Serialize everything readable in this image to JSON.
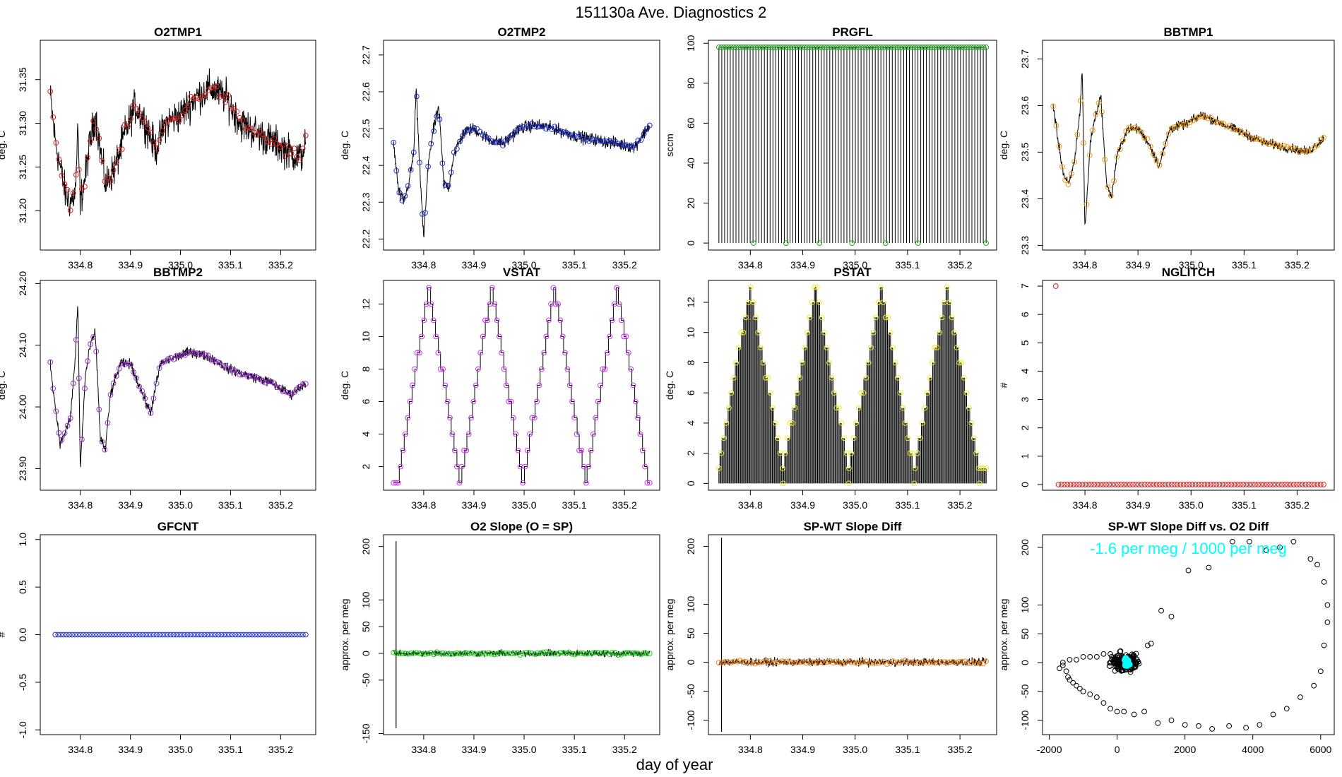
{
  "figure": {
    "title": "151130a   Ave. Diagnostics 2",
    "xlabel": "day of year"
  },
  "colors": {
    "axis": "#000000",
    "line": "#000000",
    "annotation": "#00ffff"
  },
  "chart_data": [
    {
      "name": "O2TMP1",
      "type": "line",
      "title": "O2TMP1",
      "ylabel": "deg. C",
      "x_range": [
        334.74,
        335.25
      ],
      "xlim": [
        334.72,
        335.27
      ],
      "ylim": [
        31.155,
        31.395
      ],
      "yticks": [
        31.2,
        31.25,
        31.3,
        31.35
      ],
      "ytick_labels": [
        "31.20",
        "31.25",
        "31.30",
        "31.35"
      ],
      "xticks": [
        334.8,
        334.9,
        335.0,
        335.1,
        335.2
      ],
      "xtick_labels": [
        "334.8",
        "334.9",
        "335.0",
        "335.1",
        "335.2"
      ],
      "marker_color": "#dd2222",
      "marker_count": 90,
      "noise": 0.03,
      "profile": [
        [
          334.74,
          31.33
        ],
        [
          334.75,
          31.28
        ],
        [
          334.76,
          31.25
        ],
        [
          334.77,
          31.22
        ],
        [
          334.78,
          31.21
        ],
        [
          334.79,
          31.22
        ],
        [
          334.795,
          31.29
        ],
        [
          334.8,
          31.21
        ],
        [
          334.81,
          31.24
        ],
        [
          334.82,
          31.28
        ],
        [
          334.83,
          31.31
        ],
        [
          334.84,
          31.27
        ],
        [
          334.85,
          31.23
        ],
        [
          334.87,
          31.25
        ],
        [
          334.89,
          31.29
        ],
        [
          334.91,
          31.32
        ],
        [
          334.93,
          31.3
        ],
        [
          334.95,
          31.27
        ],
        [
          334.97,
          31.3
        ],
        [
          335.0,
          31.31
        ],
        [
          335.03,
          31.33
        ],
        [
          335.06,
          31.34
        ],
        [
          335.09,
          31.33
        ],
        [
          335.12,
          31.3
        ],
        [
          335.15,
          31.29
        ],
        [
          335.18,
          31.28
        ],
        [
          335.21,
          31.27
        ],
        [
          335.24,
          31.26
        ],
        [
          335.25,
          31.28
        ]
      ]
    },
    {
      "name": "O2TMP2",
      "type": "line",
      "title": "O2TMP2",
      "ylabel": "deg. C",
      "x_range": [
        334.74,
        335.25
      ],
      "xlim": [
        334.72,
        335.27
      ],
      "ylim": [
        22.17,
        22.74
      ],
      "yticks": [
        22.2,
        22.3,
        22.4,
        22.5,
        22.6,
        22.7
      ],
      "ytick_labels": [
        "22.2",
        "22.3",
        "22.4",
        "22.5",
        "22.6",
        "22.7"
      ],
      "xticks": [
        334.8,
        334.9,
        335.0,
        335.1,
        335.2
      ],
      "xtick_labels": [
        "334.8",
        "334.9",
        "335.0",
        "335.1",
        "335.2"
      ],
      "marker_color": "#2233cc",
      "marker_count": 90,
      "noise": 0.025,
      "profile": [
        [
          334.74,
          22.46
        ],
        [
          334.75,
          22.33
        ],
        [
          334.76,
          22.3
        ],
        [
          334.77,
          22.35
        ],
        [
          334.78,
          22.43
        ],
        [
          334.785,
          22.61
        ],
        [
          334.79,
          22.45
        ],
        [
          334.8,
          22.2
        ],
        [
          334.81,
          22.42
        ],
        [
          334.82,
          22.5
        ],
        [
          334.83,
          22.56
        ],
        [
          334.84,
          22.35
        ],
        [
          334.85,
          22.34
        ],
        [
          334.86,
          22.43
        ],
        [
          334.88,
          22.49
        ],
        [
          334.9,
          22.5
        ],
        [
          334.93,
          22.47
        ],
        [
          334.96,
          22.46
        ],
        [
          334.99,
          22.5
        ],
        [
          335.02,
          22.51
        ],
        [
          335.06,
          22.5
        ],
        [
          335.1,
          22.48
        ],
        [
          335.14,
          22.47
        ],
        [
          335.18,
          22.46
        ],
        [
          335.22,
          22.45
        ],
        [
          335.25,
          22.51
        ]
      ]
    },
    {
      "name": "PRGFL",
      "type": "spike",
      "title": "PRGFL",
      "ylabel": "sccm",
      "x_range": [
        334.74,
        335.25
      ],
      "xlim": [
        334.72,
        335.27
      ],
      "ylim": [
        -3.5,
        101.5
      ],
      "yticks": [
        0,
        20,
        40,
        60,
        80,
        100
      ],
      "ytick_labels": [
        "0",
        "20",
        "40",
        "60",
        "80",
        "100"
      ],
      "xticks": [
        334.8,
        334.9,
        335.0,
        335.1,
        335.2
      ],
      "xtick_labels": [
        "334.8",
        "334.9",
        "335.0",
        "335.1",
        "335.2"
      ],
      "marker_color": "#22aa22",
      "level": 98,
      "spike_count": 95,
      "zero_marker_days": [
        334.806,
        334.868,
        334.932,
        334.994,
        335.058,
        335.12,
        335.25
      ]
    },
    {
      "name": "BBTMP1",
      "type": "line",
      "title": "BBTMP1",
      "ylabel": "deg. C",
      "x_range": [
        334.74,
        335.25
      ],
      "xlim": [
        334.72,
        335.27
      ],
      "ylim": [
        23.29,
        23.74
      ],
      "yticks": [
        23.3,
        23.4,
        23.5,
        23.6,
        23.7
      ],
      "ytick_labels": [
        "23.3",
        "23.4",
        "23.5",
        "23.6",
        "23.7"
      ],
      "xticks": [
        334.8,
        334.9,
        335.0,
        335.1,
        335.2
      ],
      "xtick_labels": [
        "334.8",
        "334.9",
        "335.0",
        "335.1",
        "335.2"
      ],
      "marker_color": "#ee9911",
      "marker_count": 90,
      "noise": 0.015,
      "profile": [
        [
          334.74,
          23.6
        ],
        [
          334.75,
          23.52
        ],
        [
          334.76,
          23.45
        ],
        [
          334.77,
          23.43
        ],
        [
          334.78,
          23.48
        ],
        [
          334.79,
          23.58
        ],
        [
          334.795,
          23.68
        ],
        [
          334.8,
          23.33
        ],
        [
          334.81,
          23.52
        ],
        [
          334.82,
          23.58
        ],
        [
          334.83,
          23.62
        ],
        [
          334.84,
          23.44
        ],
        [
          334.85,
          23.4
        ],
        [
          334.86,
          23.49
        ],
        [
          334.88,
          23.55
        ],
        [
          334.9,
          23.55
        ],
        [
          334.92,
          23.52
        ],
        [
          334.94,
          23.47
        ],
        [
          334.96,
          23.55
        ],
        [
          334.99,
          23.56
        ],
        [
          335.02,
          23.58
        ],
        [
          335.06,
          23.56
        ],
        [
          335.1,
          23.54
        ],
        [
          335.14,
          23.52
        ],
        [
          335.18,
          23.51
        ],
        [
          335.22,
          23.5
        ],
        [
          335.25,
          23.53
        ]
      ]
    },
    {
      "name": "BBTMP2",
      "type": "line",
      "title": "BBTMP2",
      "ylabel": "deg. C",
      "x_range": [
        334.74,
        335.25
      ],
      "xlim": [
        334.72,
        335.27
      ],
      "ylim": [
        23.865,
        24.205
      ],
      "yticks": [
        23.9,
        24.0,
        24.1,
        24.2
      ],
      "ytick_labels": [
        "23.90",
        "24.00",
        "24.10",
        "24.20"
      ],
      "xticks": [
        334.8,
        334.9,
        335.0,
        335.1,
        335.2
      ],
      "xtick_labels": [
        "334.8",
        "334.9",
        "335.0",
        "335.1",
        "335.2"
      ],
      "marker_color": "#9933cc",
      "marker_count": 90,
      "noise": 0.012,
      "profile": [
        [
          334.74,
          24.07
        ],
        [
          334.75,
          24.0
        ],
        [
          334.76,
          23.94
        ],
        [
          334.77,
          23.96
        ],
        [
          334.78,
          23.98
        ],
        [
          334.79,
          24.08
        ],
        [
          334.795,
          24.17
        ],
        [
          334.8,
          23.9
        ],
        [
          334.81,
          24.05
        ],
        [
          334.82,
          24.1
        ],
        [
          334.83,
          24.12
        ],
        [
          334.84,
          23.95
        ],
        [
          334.85,
          23.93
        ],
        [
          334.86,
          24.02
        ],
        [
          334.88,
          24.07
        ],
        [
          334.9,
          24.07
        ],
        [
          334.92,
          24.03
        ],
        [
          334.94,
          23.99
        ],
        [
          334.96,
          24.07
        ],
        [
          334.99,
          24.08
        ],
        [
          335.02,
          24.09
        ],
        [
          335.06,
          24.08
        ],
        [
          335.1,
          24.06
        ],
        [
          335.14,
          24.05
        ],
        [
          335.18,
          24.04
        ],
        [
          335.22,
          24.02
        ],
        [
          335.25,
          24.04
        ]
      ]
    },
    {
      "name": "VSTAT",
      "type": "step",
      "title": "VSTAT",
      "ylabel": "deg. C",
      "x_range": [
        334.74,
        335.25
      ],
      "xlim": [
        334.72,
        335.27
      ],
      "ylim": [
        0.55,
        13.45
      ],
      "yticks": [
        2,
        4,
        6,
        8,
        10,
        12
      ],
      "ytick_labels": [
        "2",
        "4",
        "6",
        "8",
        "10",
        "12"
      ],
      "xticks": [
        334.8,
        334.9,
        335.0,
        335.1,
        335.2
      ],
      "xtick_labels": [
        "334.8",
        "334.9",
        "335.0",
        "335.1",
        "335.2"
      ],
      "marker_color": "#cc33ee",
      "period": 0.125,
      "peak_days": [
        334.81,
        334.935,
        335.06,
        335.185
      ],
      "levels": [
        1,
        13
      ]
    },
    {
      "name": "PSTAT",
      "type": "sawtooth",
      "title": "PSTAT",
      "ylabel": "deg. C",
      "x_range": [
        334.74,
        335.25
      ],
      "xlim": [
        334.72,
        335.27
      ],
      "ylim": [
        -0.45,
        13.45
      ],
      "yticks": [
        0,
        2,
        4,
        6,
        8,
        10,
        12
      ],
      "ytick_labels": [
        "0",
        "2",
        "4",
        "6",
        "8",
        "10",
        "12"
      ],
      "xticks": [
        334.8,
        334.9,
        335.0,
        335.1,
        335.2
      ],
      "xtick_labels": [
        "334.8",
        "334.9",
        "335.0",
        "335.1",
        "335.2"
      ],
      "marker_color": "#eeee22",
      "period": 0.125,
      "peak_days": [
        334.8,
        334.925,
        335.05,
        335.175
      ],
      "levels": [
        1,
        13
      ]
    },
    {
      "name": "NGLITCH",
      "type": "scatter",
      "title": "NGLITCH",
      "ylabel": "#",
      "x_range": [
        334.74,
        335.25
      ],
      "xlim": [
        334.72,
        335.27
      ],
      "ylim": [
        -0.2,
        7.2
      ],
      "yticks": [
        0,
        1,
        2,
        3,
        4,
        5,
        6,
        7
      ],
      "ytick_labels": [
        "0",
        "1",
        "2",
        "3",
        "4",
        "5",
        "6",
        "7"
      ],
      "xticks": [
        334.8,
        334.9,
        335.0,
        335.1,
        335.2
      ],
      "xtick_labels": [
        "334.8",
        "334.9",
        "335.0",
        "335.1",
        "335.2"
      ],
      "marker_color": "#cc2222",
      "marker_count": 90,
      "points": [
        [
          334.745,
          7
        ]
      ],
      "baseline": 0
    },
    {
      "name": "GFCNT",
      "type": "scatter",
      "title": "GFCNT",
      "ylabel": "#",
      "x_range": [
        334.74,
        335.25
      ],
      "xlim": [
        334.72,
        335.27
      ],
      "ylim": [
        -1.05,
        1.05
      ],
      "yticks": [
        -1.0,
        -0.5,
        0.0,
        0.5,
        1.0
      ],
      "ytick_labels": [
        "-1.0",
        "-0.5",
        "0.0",
        "0.5",
        "1.0"
      ],
      "xticks": [
        334.8,
        334.9,
        335.0,
        335.1,
        335.2
      ],
      "xtick_labels": [
        "334.8",
        "334.9",
        "335.0",
        "335.1",
        "335.2"
      ],
      "marker_color": "#2233cc",
      "marker_count": 90,
      "baseline": 0
    },
    {
      "name": "O2-Slope",
      "type": "line",
      "title": "O2 Slope (O = SP)",
      "ylabel": "approx. per meg",
      "x_range": [
        334.74,
        335.25
      ],
      "xlim": [
        334.72,
        335.27
      ],
      "ylim": [
        -152,
        222
      ],
      "yticks": [
        -150,
        -50,
        0,
        50,
        100,
        200
      ],
      "ytick_labels": [
        "-150",
        "-50",
        "0",
        "50",
        "100",
        "200"
      ],
      "xticks": [
        334.8,
        334.9,
        335.0,
        335.1,
        335.2
      ],
      "xtick_labels": [
        "334.8",
        "334.9",
        "335.0",
        "335.1",
        "335.2"
      ],
      "marker_color": "#22cc22",
      "marker_count": 90,
      "noise": 9,
      "spike": {
        "day": 334.745,
        "low": -140,
        "high": 210
      },
      "profile": [
        [
          334.74,
          0
        ],
        [
          335.25,
          0
        ]
      ]
    },
    {
      "name": "SP-WT-Slope-Diff",
      "type": "line",
      "title": "SP-WT Slope Diff",
      "ylabel": "approx. per meg",
      "x_range": [
        334.74,
        335.25
      ],
      "xlim": [
        334.72,
        335.27
      ],
      "ylim": [
        -125,
        220
      ],
      "yticks": [
        -100,
        -50,
        0,
        50,
        100,
        200
      ],
      "ytick_labels": [
        "-100",
        "-50",
        "0",
        "50",
        "100",
        "200"
      ],
      "xticks": [
        334.8,
        334.9,
        335.0,
        335.1,
        335.2
      ],
      "xtick_labels": [
        "334.8",
        "334.9",
        "335.0",
        "335.1",
        "335.2"
      ],
      "marker_color": "#ee8822",
      "marker_count": 90,
      "noise": 10,
      "spike": {
        "day": 334.745,
        "low": -120,
        "high": 215
      },
      "profile": [
        [
          334.74,
          0
        ],
        [
          335.25,
          0
        ]
      ]
    },
    {
      "name": "SP-WT-vs-O2",
      "type": "scatter",
      "title": "SP-WT Slope Diff vs. O2 Diff",
      "ylabel": "approx. per meg",
      "xlim": [
        -2200,
        6400
      ],
      "ylim": [
        -125,
        222
      ],
      "yticks": [
        -100,
        -50,
        0,
        50,
        100,
        200
      ],
      "ytick_labels": [
        "-100",
        "-50",
        "0",
        "50",
        "100",
        "200"
      ],
      "xticks": [
        -2000,
        0,
        2000,
        4000,
        6000
      ],
      "xtick_labels": [
        "-2000",
        "0",
        "2000",
        "4000",
        "6000"
      ],
      "annotation": "-1.6 per meg / 1000 per meg",
      "outliers": [
        [
          -1700,
          -10
        ],
        [
          -1600,
          -5
        ],
        [
          -1500,
          -15
        ],
        [
          -1450,
          -25
        ],
        [
          -1400,
          -30
        ],
        [
          -1300,
          -35
        ],
        [
          -1200,
          -40
        ],
        [
          -1100,
          -45
        ],
        [
          -1000,
          -50
        ],
        [
          -800,
          -55
        ],
        [
          -600,
          -60
        ],
        [
          -400,
          -70
        ],
        [
          -200,
          -80
        ],
        [
          0,
          -85
        ],
        [
          200,
          -85
        ],
        [
          500,
          -90
        ],
        [
          800,
          -85
        ],
        [
          1200,
          -105
        ],
        [
          1600,
          -100
        ],
        [
          2000,
          -108
        ],
        [
          2400,
          -110
        ],
        [
          2800,
          -115
        ],
        [
          3300,
          -110
        ],
        [
          3800,
          -113
        ],
        [
          4200,
          -108
        ],
        [
          4600,
          -90
        ],
        [
          5000,
          -80
        ],
        [
          5400,
          -60
        ],
        [
          5800,
          -40
        ],
        [
          6000,
          -15
        ],
        [
          6100,
          30
        ],
        [
          6200,
          70
        ],
        [
          6200,
          100
        ],
        [
          6100,
          140
        ],
        [
          5900,
          170
        ],
        [
          5700,
          180
        ],
        [
          5200,
          210
        ],
        [
          4800,
          200
        ],
        [
          4400,
          195
        ],
        [
          3900,
          210
        ],
        [
          3400,
          210
        ],
        [
          2700,
          165
        ],
        [
          2100,
          160
        ],
        [
          1600,
          80
        ],
        [
          1300,
          90
        ],
        [
          1000,
          33
        ],
        [
          900,
          30
        ],
        [
          -1600,
          0
        ],
        [
          -1400,
          5
        ],
        [
          -1200,
          5
        ],
        [
          -1000,
          10
        ],
        [
          -800,
          10
        ],
        [
          -600,
          10
        ],
        [
          -400,
          15
        ],
        [
          -200,
          15
        ],
        [
          100,
          20
        ]
      ],
      "cluster": {
        "x_center": 250,
        "y_center": 0,
        "x_spread": 550,
        "y_spread": 20,
        "count": 260
      },
      "highlight": {
        "x_center": 300,
        "y_center": 0,
        "x_spread": 120,
        "y_spread": 10,
        "count": 18,
        "color": "#00ffff"
      }
    }
  ]
}
